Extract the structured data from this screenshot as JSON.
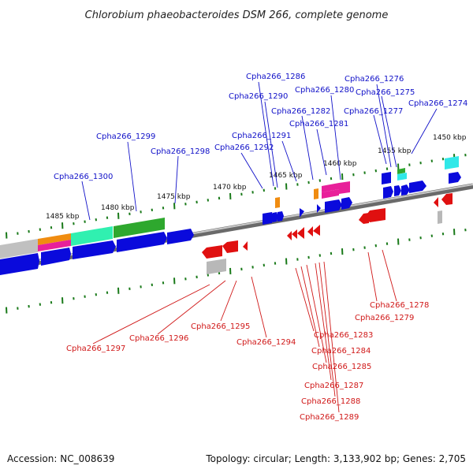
{
  "title": "Chlorobium phaeobacteroides DSM 266, complete genome",
  "footer": {
    "accession": "Accession: NC_008639",
    "summary": "Topology: circular; Length: 3,133,902 bp; Genes: 2,705"
  },
  "kbp_labels": [
    "1485 kbp",
    "1480 kbp",
    "1475 kbp",
    "1470 kbp",
    "1465 kbp",
    "1460 kbp",
    "1455 kbp",
    "1450 kbp"
  ],
  "top_labels": [
    "Cpha266_1286",
    "Cpha266_1280",
    "Cpha266_1276",
    "Cpha266_1290",
    "Cpha266_1275",
    "Cpha266_1282",
    "Cpha266_1274",
    "Cpha266_1277",
    "Cpha266_1281",
    "Cpha266_1291",
    "Cpha266_1299",
    "Cpha266_1292",
    "Cpha266_1298",
    "Cpha266_1300"
  ],
  "bottom_labels": [
    "Cpha266_1278",
    "Cpha266_1279",
    "Cpha266_1295",
    "Cpha266_1297",
    "Cpha266_1296",
    "Cpha266_1294",
    "Cpha266_1283",
    "Cpha266_1284",
    "Cpha266_1285",
    "Cpha266_1287",
    "Cpha266_1288",
    "Cpha266_1289"
  ],
  "colors": {
    "plus_strand": "#0a0adc",
    "minus_strand": "#e01010",
    "backbone": "#808080",
    "tick": "#1a7a1a"
  }
}
